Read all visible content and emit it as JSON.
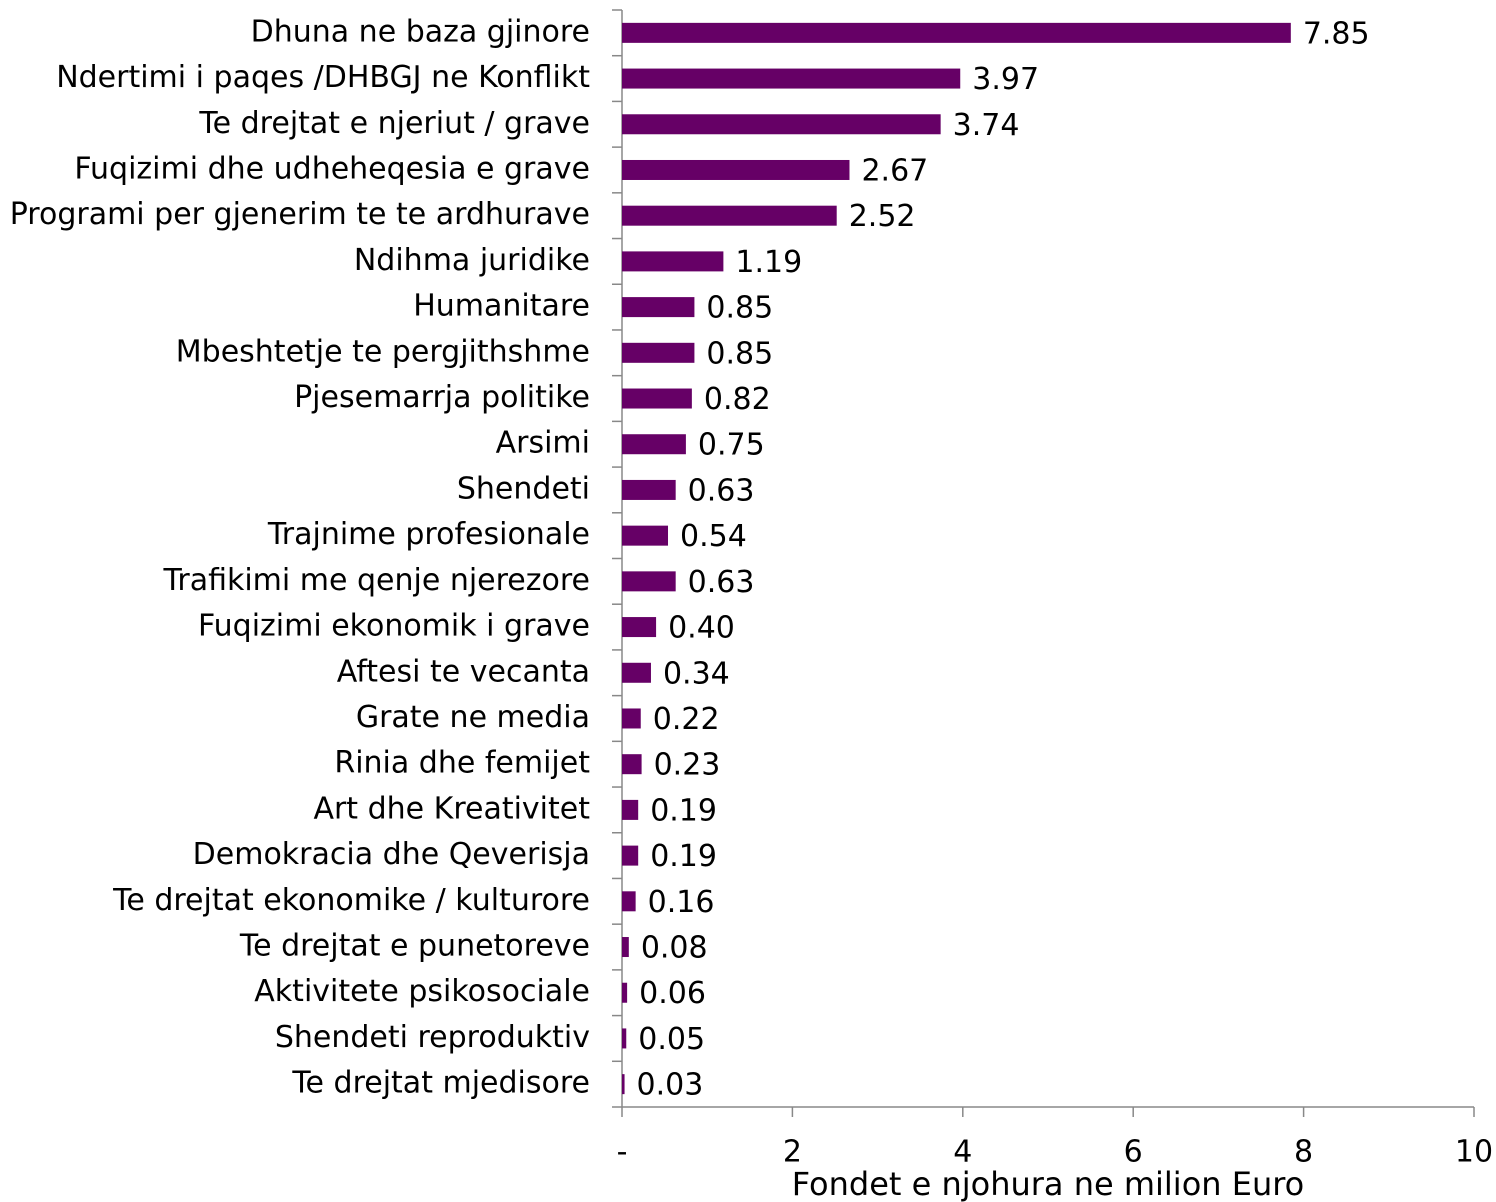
{
  "chart_data": {
    "type": "barh",
    "categories": [
      "Dhuna ne baza gjinore",
      "Ndertimi i paqes /DHBGJ ne Konflikt",
      "Te drejtat e njeriut / grave",
      "Fuqizimi dhe udheheqesia e grave",
      "Programi per gjenerim te te ardhurave",
      "Ndihma juridike",
      "Humanitare",
      "Mbeshtetje te pergjithshme",
      "Pjesemarrja politike",
      "Arsimi",
      "Shendeti",
      "Trajnime profesionale",
      "Trafikimi me qenje njerezore",
      "Fuqizimi ekonomik i grave",
      "Aftesi te vecanta",
      "Grate ne media",
      "Rinia dhe femijet",
      "Art dhe Kreativitet",
      "Demokracia dhe Qeverisja",
      "Te drejtat ekonomike / kulturore",
      "Te drejtat e punetoreve",
      "Aktivitete psikosociale",
      "Shendeti reproduktiv",
      "Te drejtat mjedisore"
    ],
    "values": [
      7.85,
      3.97,
      3.74,
      2.67,
      2.52,
      1.19,
      0.85,
      0.85,
      0.82,
      0.75,
      0.63,
      0.54,
      0.63,
      0.4,
      0.34,
      0.22,
      0.23,
      0.19,
      0.19,
      0.16,
      0.08,
      0.06,
      0.05,
      0.03
    ],
    "value_labels": [
      "7.85",
      "3.97",
      "3.74",
      "2.67",
      "2.52",
      "1.19",
      "0.85",
      "0.85",
      "0.82",
      "0.75",
      "0.63",
      "0.54",
      "0.63",
      "0.40",
      "0.34",
      "0.22",
      "0.23",
      "0.19",
      "0.19",
      "0.16",
      "0.08",
      "0.06",
      "0.05",
      "0.03"
    ],
    "color": "#660066",
    "xlabel": "Fondet e njohura ne milion Euro",
    "xlim": [
      0,
      10
    ],
    "xticks": [
      {
        "value": 0,
        "label": "-"
      },
      2,
      4,
      6,
      8,
      10
    ]
  }
}
